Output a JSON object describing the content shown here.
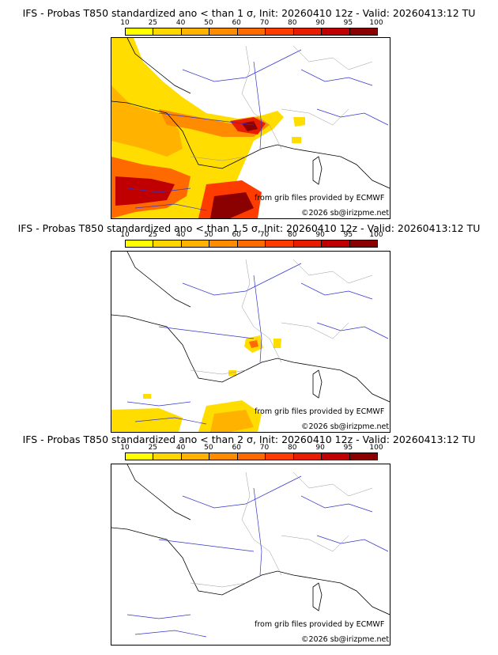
{
  "panels": [
    {
      "title": "IFS - Probas T850  standardized ano < than 1 σ, Init: 20260410 12z - Valid: 20260413:12 TU",
      "source": "from grib files provided by ECMWF",
      "copyright": "©2026 sb@irizpme.net"
    },
    {
      "title": "IFS - Probas T850  standardized ano < than 1.5 σ, Init: 20260410 12z - Valid: 20260413:12 TU",
      "source": "from grib files provided by ECMWF",
      "copyright": "©2026 sb@irizpme.net"
    },
    {
      "title": "IFS - Probas T850  standardized ano < than 2 σ, Init: 20260410 12z - Valid: 20260413:12 TU",
      "source": "from grib files provided by ECMWF",
      "copyright": "©2026 sb@irizpme.net"
    }
  ],
  "colorbar": {
    "ticks": [
      "10",
      "25",
      "40",
      "50",
      "60",
      "70",
      "80",
      "90",
      "95",
      "100"
    ],
    "colors": [
      "#ffff00",
      "#ffd700",
      "#ffb300",
      "#ff8c00",
      "#ff6a00",
      "#ff3c00",
      "#e81c00",
      "#c00000",
      "#8b0000"
    ]
  }
}
